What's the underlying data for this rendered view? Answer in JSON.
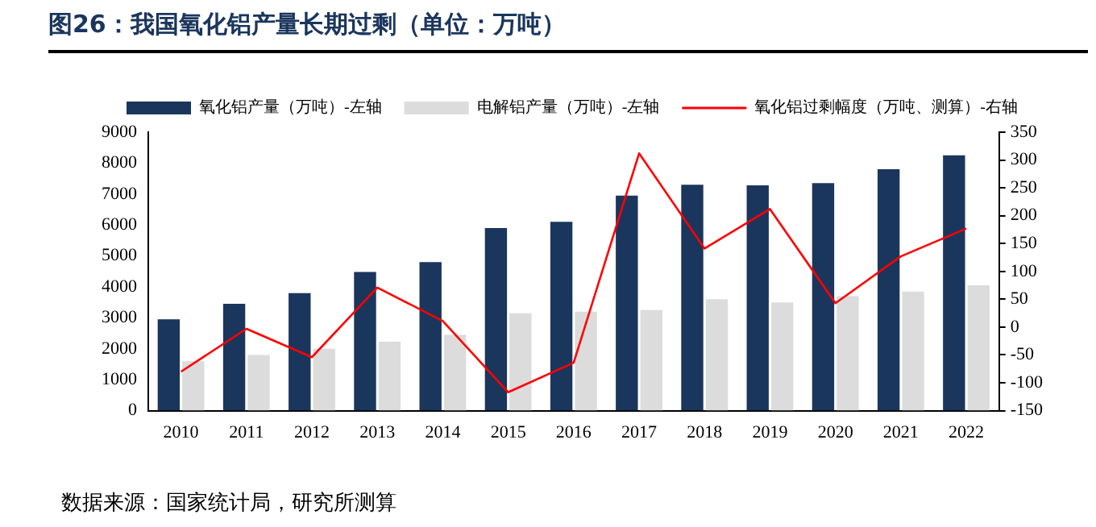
{
  "chart_data": {
    "type": "bar",
    "title": "图26：我国氧化铝产量长期过剩（单位：万吨）",
    "categories": [
      "2010",
      "2011",
      "2012",
      "2013",
      "2014",
      "2015",
      "2016",
      "2017",
      "2018",
      "2019",
      "2020",
      "2021",
      "2022"
    ],
    "series": [
      {
        "name": "氧化铝产量（万吨）-左轴",
        "color": "#1b365d",
        "values": [
          2950,
          3450,
          3800,
          4480,
          4800,
          5900,
          6100,
          6950,
          7300,
          7280,
          7350,
          7800,
          8250
        ]
      },
      {
        "name": "电解铝产量（万吨）-左轴",
        "color": "#dcdcdc",
        "values": [
          1600,
          1800,
          2000,
          2230,
          2450,
          3150,
          3200,
          3250,
          3600,
          3500,
          3700,
          3850,
          4050
        ]
      },
      {
        "name": "氧化铝过剩幅度（万吨、测算）-右轴",
        "type": "line",
        "axis": "y2",
        "color": "#ff0000",
        "values": [
          -80,
          -3,
          -54,
          71,
          11,
          -117,
          -64,
          312,
          141,
          212,
          43,
          127,
          177
        ]
      }
    ],
    "ylim": [
      0,
      9000
    ],
    "yticks": [
      0,
      1000,
      2000,
      3000,
      4000,
      5000,
      6000,
      7000,
      8000,
      9000
    ],
    "y2lim": [
      -150,
      350
    ],
    "y2ticks": [
      -150,
      -100,
      -50,
      0,
      50,
      100,
      150,
      200,
      250,
      300,
      350
    ],
    "legend": "top",
    "grid": false,
    "marker": "none",
    "annotations": [
      "数据来源：国家统计局，研究所测算"
    ]
  }
}
